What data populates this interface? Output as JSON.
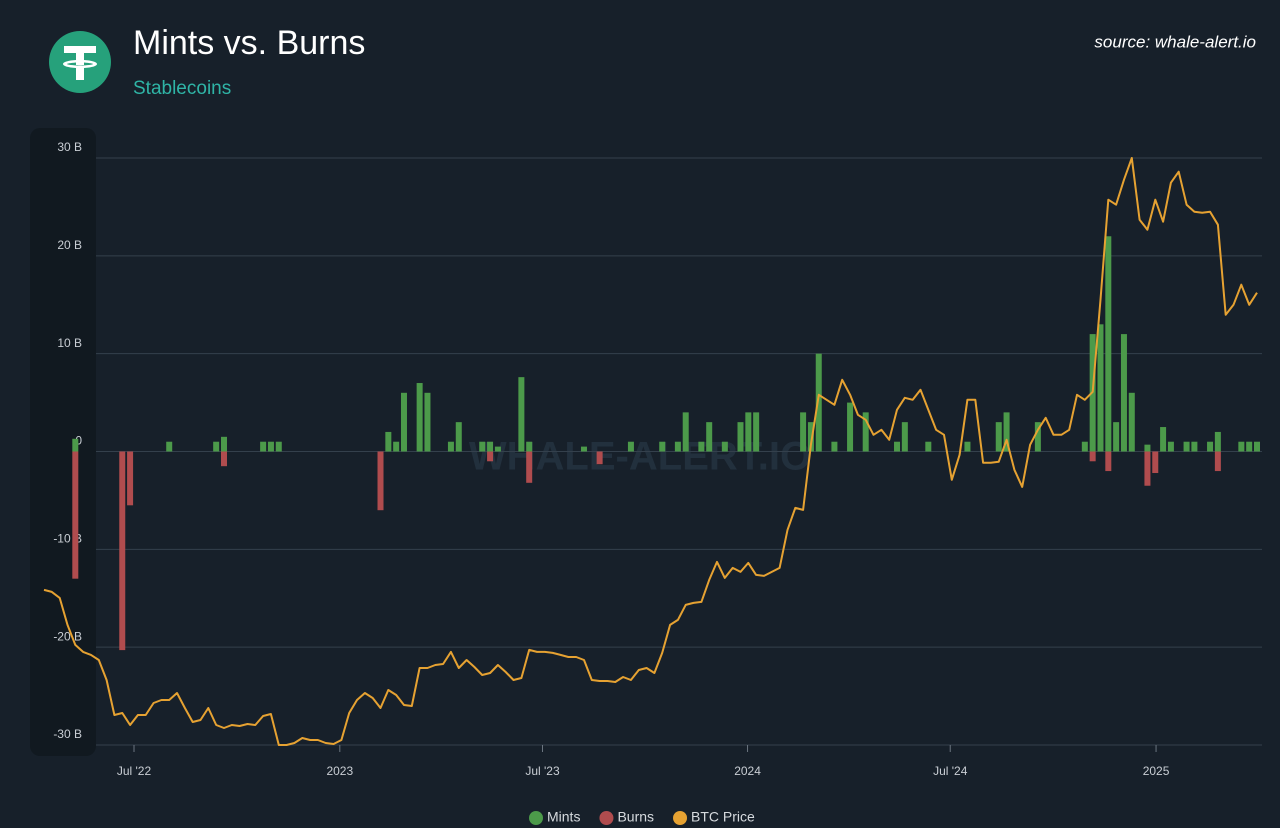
{
  "chart_data": {
    "type": "bar",
    "title": "Mints vs. Burns",
    "subtitle": "Stablecoins",
    "source": "source: whale-alert.io",
    "watermark": "WHALE-ALERT.IO",
    "categories": [
      null,
      null,
      null,
      null,
      null,
      null,
      null,
      null,
      null,
      null,
      null,
      null,
      null,
      null,
      null,
      null,
      null,
      null,
      null,
      null,
      null,
      null,
      null,
      null,
      null,
      null,
      null,
      null,
      null,
      null,
      null,
      null,
      null,
      null,
      null,
      null,
      null,
      null,
      null,
      null,
      null,
      null,
      null,
      null,
      null,
      null,
      null,
      null,
      null,
      null,
      null,
      null,
      null,
      null,
      null,
      null,
      null,
      null,
      null,
      null,
      null,
      null,
      null,
      null,
      null,
      null,
      null,
      null,
      null,
      null,
      null,
      null,
      null,
      null,
      null,
      null,
      null,
      null,
      null,
      null,
      null,
      null,
      null,
      null,
      null,
      null,
      null,
      null,
      null,
      null,
      null,
      null,
      null,
      null,
      null,
      null,
      null,
      null,
      null,
      null,
      null,
      null,
      null,
      null,
      null,
      null,
      null,
      null,
      null,
      null,
      null,
      null,
      null,
      null,
      null,
      null,
      null,
      null,
      null,
      null,
      null,
      null,
      null,
      null,
      null,
      null,
      null,
      null,
      null,
      null,
      null,
      null,
      null,
      null,
      null,
      null,
      null,
      null,
      null,
      null,
      null,
      null,
      null,
      null,
      null,
      null,
      null,
      null,
      null,
      null,
      null,
      null,
      null,
      null,
      null,
      null
    ],
    "xlim": [
      0,
      155
    ],
    "xticks": [
      {
        "value": 11.5,
        "label": "Jul '22"
      },
      {
        "value": 37.8,
        "label": "2023"
      },
      {
        "value": 63.7,
        "label": "Jul '23"
      },
      {
        "value": 89.9,
        "label": "2024"
      },
      {
        "value": 115.8,
        "label": "Jul '24"
      },
      {
        "value": 142.1,
        "label": "2025"
      }
    ],
    "ylim": [
      -30,
      30
    ],
    "yticks": [
      {
        "value": -30,
        "label": "-30 B"
      },
      {
        "value": -20,
        "label": "-20 B"
      },
      {
        "value": -10,
        "label": "-10 B"
      },
      0,
      {
        "value": 10,
        "label": "10 B"
      },
      {
        "value": 20,
        "label": "20 B"
      },
      {
        "value": 30,
        "label": "30 B"
      }
    ],
    "y2lim": [
      16000,
      104000
    ],
    "grid": true,
    "series": [
      {
        "name": "Mints",
        "type": "bar",
        "color": "#4c9a4a",
        "values": [
          0,
          0,
          0,
          0,
          1.3,
          0,
          0,
          0,
          0,
          0,
          0,
          0,
          0,
          0,
          0,
          0,
          1,
          0,
          0,
          0,
          0,
          0,
          1,
          1.5,
          0,
          0,
          0,
          0,
          1,
          1,
          1,
          0,
          0,
          0,
          0,
          0,
          0,
          0,
          0,
          0,
          0,
          0,
          0,
          0,
          2,
          1,
          6,
          0,
          7,
          6,
          0,
          0,
          1,
          3,
          0,
          0,
          1,
          1,
          0.5,
          0,
          0,
          7.6,
          1,
          0,
          0,
          0,
          0,
          0,
          0,
          0.5,
          0,
          0,
          0,
          0,
          0,
          1,
          0,
          0,
          0,
          1,
          0,
          1,
          4,
          0,
          1,
          3,
          0,
          1,
          0,
          3,
          4,
          4,
          0,
          0,
          0,
          0,
          0,
          4,
          3,
          10,
          0,
          1,
          0,
          5,
          0,
          4,
          0,
          0,
          0,
          1,
          3,
          0,
          0,
          1,
          0,
          0,
          0,
          0,
          1,
          0,
          0,
          0,
          3,
          4,
          0,
          0,
          0,
          3,
          0,
          0,
          0,
          0,
          0,
          1,
          12,
          13,
          22,
          3,
          12,
          6,
          0,
          0.7,
          0,
          2.5,
          1,
          0,
          1,
          1,
          0,
          1,
          2,
          0,
          0,
          1,
          1,
          1
        ]
      },
      {
        "name": "Burns",
        "type": "bar",
        "color": "#b04c4e",
        "values": [
          0,
          0,
          0,
          0,
          -13,
          0,
          0,
          0,
          0,
          0,
          -20.3,
          -5.5,
          0,
          0,
          0,
          0,
          0,
          0,
          0,
          0,
          0,
          0,
          0,
          -1.5,
          0,
          0,
          0,
          0,
          0,
          0,
          0,
          0,
          0,
          0,
          0,
          0,
          0,
          0,
          0,
          0,
          0,
          0,
          0,
          -6,
          0,
          0,
          0,
          0,
          0,
          0,
          0,
          0,
          0,
          0,
          0,
          0,
          0,
          -1,
          0,
          0,
          0,
          0,
          -3.2,
          0,
          0,
          0,
          0,
          0,
          0,
          0,
          0,
          -1.3,
          0,
          0,
          0,
          0,
          0,
          0,
          0,
          0,
          0,
          0,
          0,
          0,
          0,
          0,
          0,
          0,
          0,
          0,
          0,
          0,
          0,
          0,
          0,
          0,
          0,
          0,
          0,
          0,
          0,
          0,
          0,
          0,
          0,
          0,
          0,
          0,
          0,
          0,
          0,
          0,
          0,
          0,
          0,
          0,
          0,
          0,
          0,
          0,
          0,
          0,
          0,
          0,
          0,
          0,
          0,
          0,
          0,
          0,
          0,
          0,
          0,
          0,
          -1,
          0,
          -2,
          0,
          0,
          0,
          0,
          -3.5,
          -2.2,
          0,
          0,
          0,
          0,
          0,
          0,
          0,
          -2,
          0,
          0,
          0,
          0,
          0
        ]
      },
      {
        "name": "BTC Price",
        "type": "line",
        "axis": "y2",
        "color": "#e6a232",
        "values": [
          39250,
          38950,
          38050,
          34000,
          31000,
          29950,
          29500,
          28750,
          25750,
          20500,
          20800,
          19000,
          20500,
          20500,
          22300,
          22750,
          22750,
          23800,
          21550,
          19450,
          19750,
          21550,
          19000,
          18550,
          19000,
          18850,
          19150,
          19000,
          20350,
          20650,
          16000,
          16000,
          16300,
          17050,
          16750,
          16750,
          16300,
          16150,
          16750,
          20800,
          22750,
          23800,
          23050,
          21550,
          24250,
          23500,
          22000,
          21850,
          27550,
          27550,
          28000,
          28150,
          29950,
          27550,
          28750,
          27700,
          26500,
          26800,
          28000,
          26950,
          25750,
          26050,
          30250,
          29950,
          29950,
          29800,
          29500,
          29200,
          29200,
          28750,
          25750,
          25600,
          25600,
          25450,
          26200,
          25750,
          27250,
          27550,
          26800,
          29800,
          34000,
          34750,
          37000,
          37300,
          37450,
          40750,
          43450,
          41050,
          42550,
          41950,
          43300,
          41500,
          41350,
          41950,
          42550,
          48250,
          51550,
          51250,
          61000,
          68500,
          67750,
          67000,
          70750,
          68500,
          65500,
          64750,
          62500,
          63250,
          61750,
          66250,
          68050,
          67750,
          69250,
          66250,
          63250,
          62500,
          55750,
          59500,
          67750,
          67750,
          58300,
          58300,
          58450,
          61750,
          57250,
          54700,
          61000,
          63250,
          65050,
          62500,
          62500,
          63250,
          68500,
          67750,
          68950,
          82750,
          97750,
          97000,
          100750,
          104000,
          94750,
          93250,
          97750,
          94450,
          100300,
          101950,
          97000,
          95950,
          95800,
          95950,
          94000,
          80500,
          82000,
          85000,
          82000,
          83800
        ]
      }
    ]
  }
}
